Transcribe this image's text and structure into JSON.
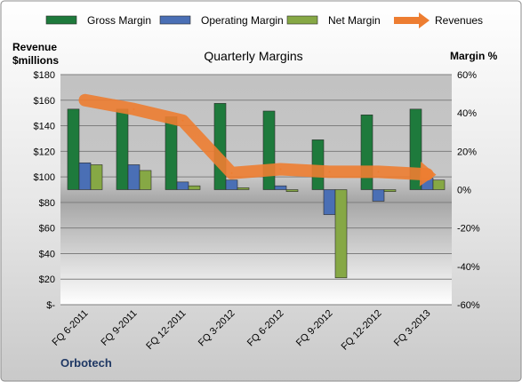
{
  "chart_data": {
    "type": "bar",
    "title": "Quarterly Margins",
    "source": "Orbotech",
    "left_axis_title": [
      "Revenue",
      "$millions"
    ],
    "right_axis_title": "Margin %",
    "categories": [
      "FQ 6-2011",
      "FQ 9-2011",
      "FQ 12-2011",
      "FQ 3-2012",
      "FQ 6-2012",
      "FQ 9-2012",
      "FQ 12-2012",
      "FQ 3-2013"
    ],
    "left_axis": {
      "min": 0,
      "max": 180,
      "step": 20,
      "tick_labels": [
        "$-",
        "$20",
        "$40",
        "$60",
        "$80",
        "$100",
        "$120",
        "$140",
        "$160",
        "$180"
      ]
    },
    "right_axis": {
      "min": -60,
      "max": 60,
      "step": 20,
      "tick_labels": [
        "-60%",
        "-40%",
        "-20%",
        "0%",
        "20%",
        "40%",
        "60%"
      ]
    },
    "legend_position": "top",
    "grid": true,
    "series": [
      {
        "name": "Gross Margin",
        "axis": "right",
        "kind": "bar",
        "color": "#1e7a3c",
        "values": [
          42,
          42,
          38,
          45,
          41,
          26,
          39,
          42
        ]
      },
      {
        "name": "Operating Margin",
        "axis": "right",
        "kind": "bar",
        "color": "#4a6fb5",
        "values": [
          14,
          13,
          4,
          5,
          2,
          -13,
          -6,
          6
        ]
      },
      {
        "name": "Net Margin",
        "axis": "right",
        "kind": "bar",
        "color": "#86a845",
        "values": [
          13,
          10,
          2,
          1,
          -1,
          -46,
          -1,
          5
        ]
      },
      {
        "name": "Revenues",
        "axis": "left",
        "kind": "line",
        "color": "#ed7d31",
        "values": [
          160,
          153,
          144,
          103,
          106,
          104,
          104,
          102
        ]
      }
    ]
  }
}
